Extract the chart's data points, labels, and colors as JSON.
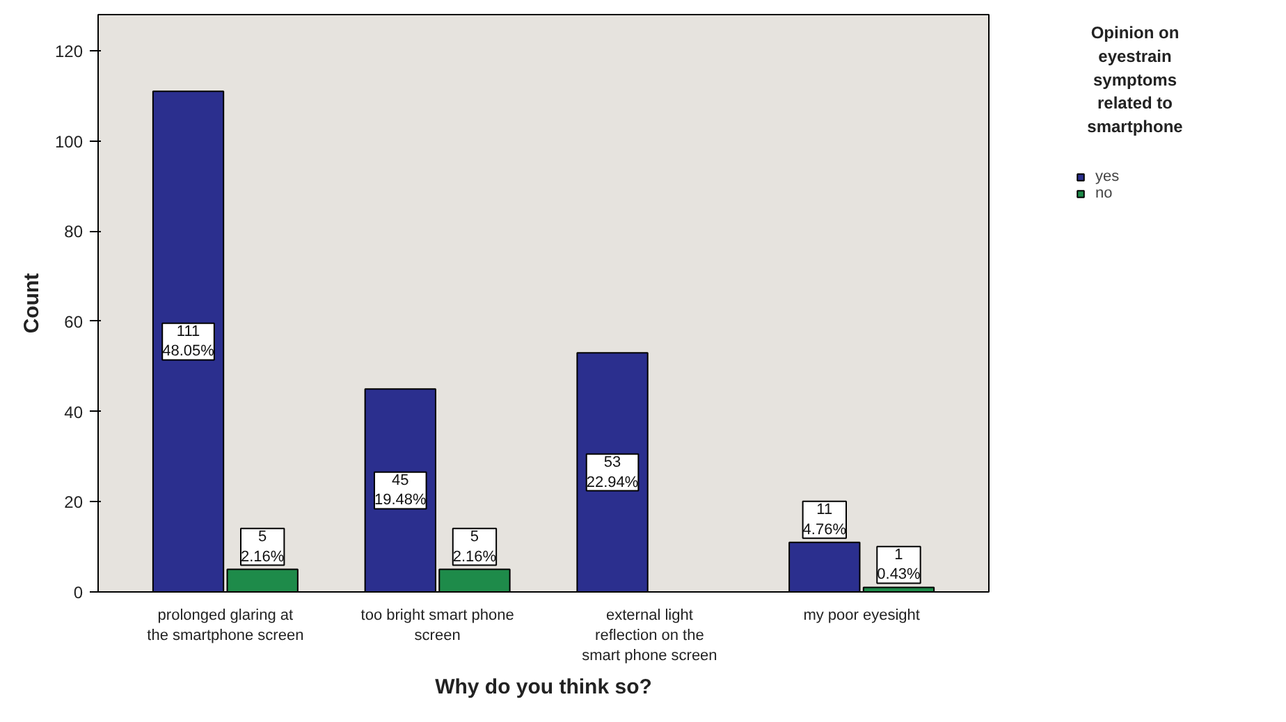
{
  "chart_data": {
    "type": "bar",
    "xlabel": "Why do you think so?",
    "ylabel": "Count",
    "legend_title": "Opinion on eyestrain symptoms related to smartphone",
    "categories": [
      "prolonged glaring at the smartphone screen",
      "too bright smart phone screen",
      "external light reflection on the smart phone screen",
      "my poor eyesight"
    ],
    "series": [
      {
        "name": "yes",
        "color": "#2b2f8e",
        "values": [
          111,
          45,
          53,
          11
        ],
        "value_labels": [
          "111\n48.05%",
          "45\n19.48%",
          "53\n22.94%",
          "11\n4.76%"
        ]
      },
      {
        "name": "no",
        "color": "#1e8b4a",
        "values": [
          5,
          5,
          null,
          1
        ],
        "value_labels": [
          "5\n2.16%",
          "5\n2.16%",
          null,
          "1\n0.43%"
        ]
      }
    ],
    "ylim": [
      0,
      128
    ],
    "yticks": [
      0,
      20,
      40,
      60,
      80,
      100,
      120
    ],
    "grid": false,
    "legend": "right"
  }
}
